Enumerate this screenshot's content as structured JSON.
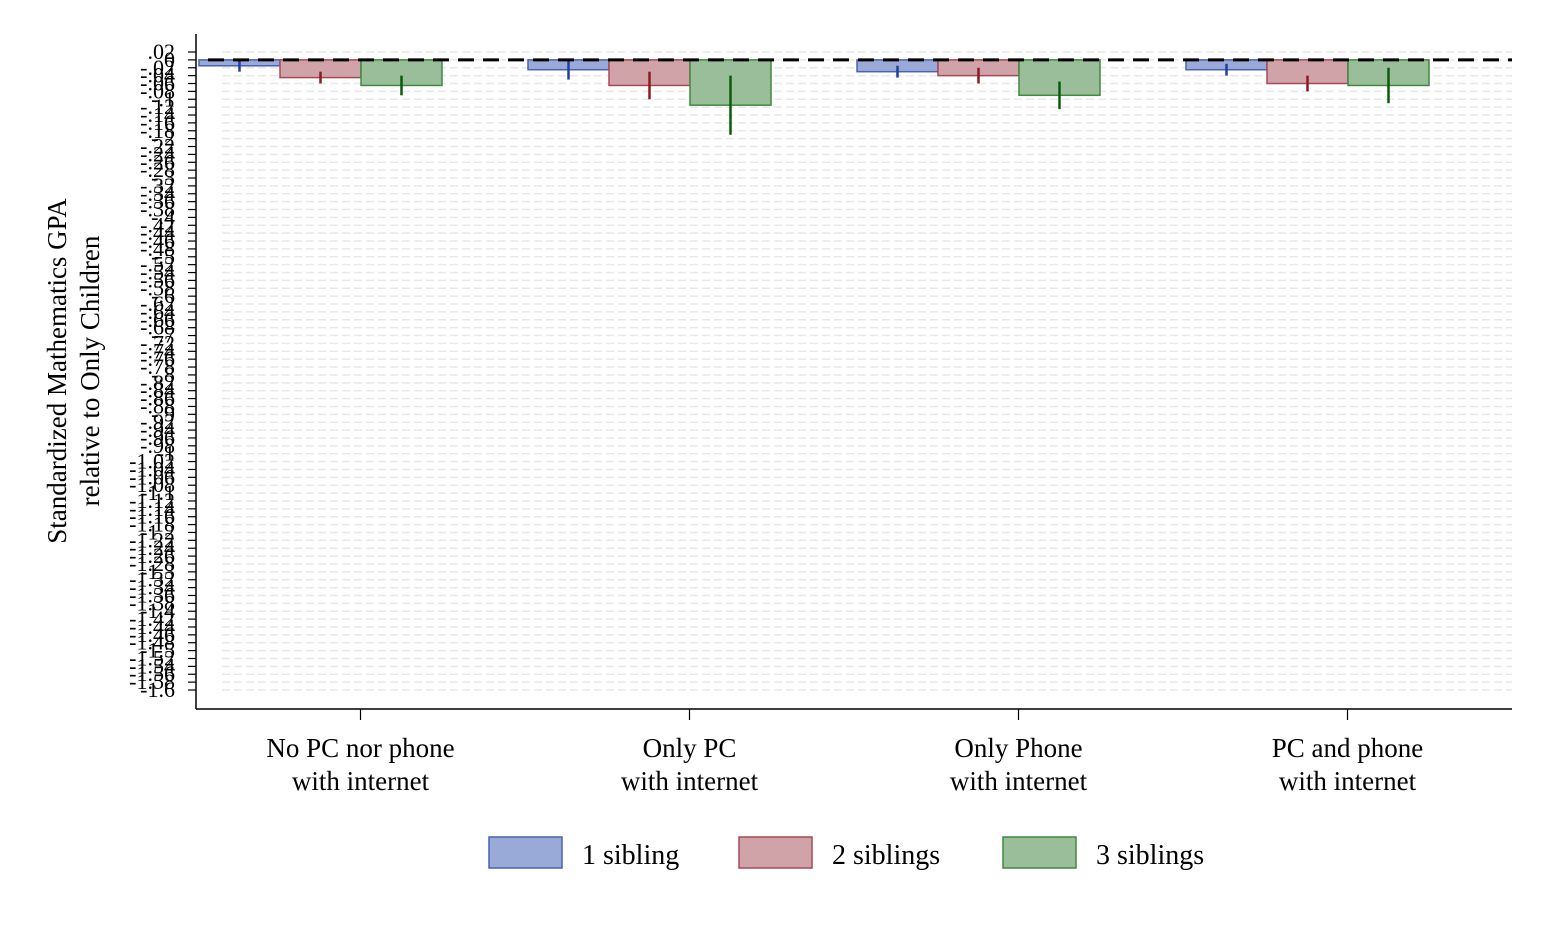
{
  "chart_data": {
    "type": "bar",
    "title": "",
    "xlabel": "",
    "ylabel_lines": [
      "Standardized Mathematics GPA",
      "relative to Only Children"
    ],
    "categories": [
      [
        "No PC nor phone",
        "with internet"
      ],
      [
        "Only PC",
        "with internet"
      ],
      [
        "Only Phone",
        "with internet"
      ],
      [
        "PC and phone",
        "with internet"
      ]
    ],
    "ylim": [
      -1.6,
      0.02
    ],
    "ytick_labels": [
      ".02",
      "0",
      "-.02",
      "-.04",
      "-.06",
      "-.08",
      "-.1",
      "-.12",
      "-.14",
      "-.16",
      "-.18",
      "-.2",
      "-.22",
      "-.24",
      "-.26",
      "-.28",
      "-.3",
      "-.32",
      "-.34",
      "-.36",
      "-.38",
      "-.4",
      "-.42",
      "-.44",
      "-.46",
      "-.48",
      "-.5",
      "-.52",
      "-.54",
      "-.56",
      "-.58",
      "-.6",
      "-.62",
      "-.64",
      "-.66",
      "-.68",
      "-.7",
      "-.72",
      "-.74",
      "-.76",
      "-.78",
      "-.8",
      "-.82",
      "-.84",
      "-.86",
      "-.88",
      "-.9",
      "-.92",
      "-.94",
      "-.96",
      "-.98",
      "-1",
      "-1.02",
      "-1.04",
      "-1.06",
      "-1.08",
      "-1.1",
      "-1.12",
      "-1.14",
      "-1.16",
      "-1.18",
      "-1.2",
      "-1.22",
      "-1.24",
      "-1.26",
      "-1.28",
      "-1.3",
      "-1.32",
      "-1.34",
      "-1.36",
      "-1.38",
      "-1.4",
      "-1.42",
      "-1.44",
      "-1.46",
      "-1.48",
      "-1.5",
      "-1.52",
      "-1.54",
      "-1.56",
      "-1.58",
      "-1.6"
    ],
    "grid": true,
    "reference_line": 0,
    "legend_position": "bottom",
    "series": [
      {
        "name": "1 sibling",
        "color": "#99aad8",
        "edge_color": "#4a62b0",
        "ci_color": "#1f3fa0",
        "values": [
          -0.015,
          -0.025,
          -0.03,
          -0.025
        ],
        "ci_low": [
          -0.03,
          -0.05,
          -0.045,
          -0.04
        ],
        "ci_high": [
          0.0,
          0.0,
          -0.015,
          -0.01
        ]
      },
      {
        "name": "2 siblings",
        "color": "#cfa3a8",
        "edge_color": "#a84a54",
        "ci_color": "#8b1a24",
        "values": [
          -0.045,
          -0.065,
          -0.04,
          -0.06
        ],
        "ci_low": [
          -0.06,
          -0.1,
          -0.06,
          -0.08
        ],
        "ci_high": [
          -0.03,
          -0.03,
          -0.02,
          -0.04
        ]
      },
      {
        "name": "3 siblings",
        "color": "#99be99",
        "edge_color": "#3f8a3f",
        "ci_color": "#0a5c0a",
        "values": [
          -0.065,
          -0.115,
          -0.09,
          -0.065
        ],
        "ci_low": [
          -0.09,
          -0.19,
          -0.125,
          -0.11
        ],
        "ci_high": [
          -0.04,
          -0.04,
          -0.055,
          -0.02
        ]
      }
    ]
  }
}
